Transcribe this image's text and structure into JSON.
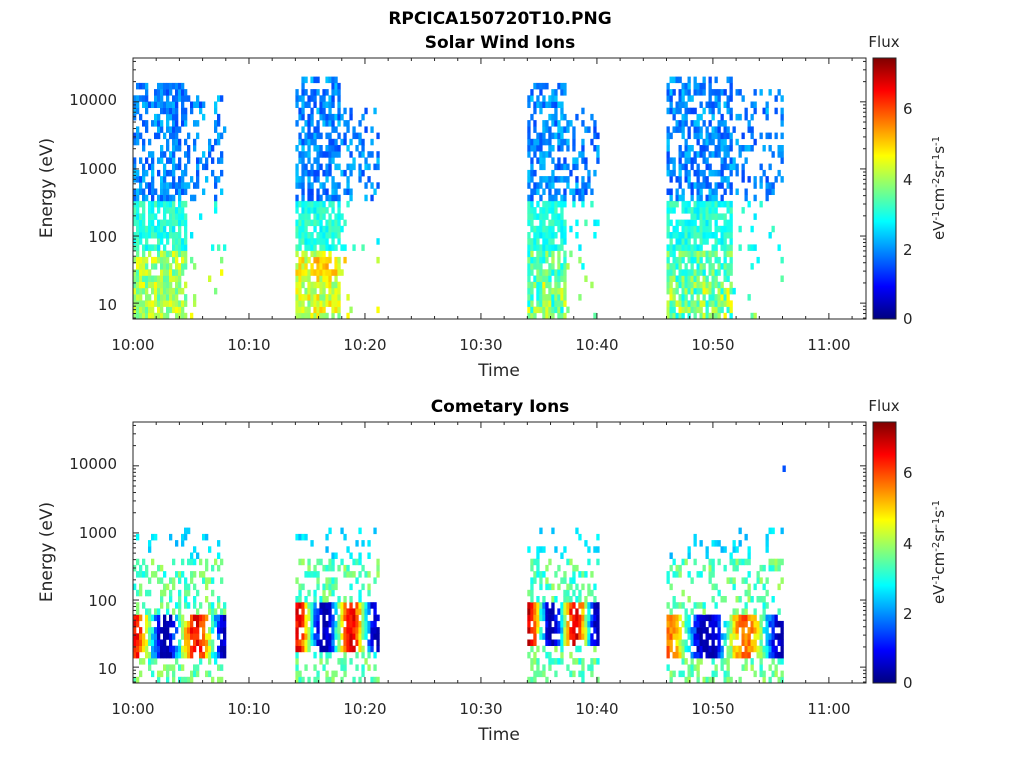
{
  "figure_title": "RPCICA150720T10.PNG",
  "colors": {
    "jet": [
      "#00007f",
      "#0000ff",
      "#007fff",
      "#00ffff",
      "#7fff7f",
      "#ffff00",
      "#ff7f00",
      "#ff0000",
      "#7f0000"
    ]
  },
  "chart_data": [
    {
      "type": "heatmap",
      "title": "Solar Wind Ions",
      "xlabel": "Time",
      "ylabel": "Energy (eV)",
      "x_ticks": [
        "10:00",
        "10:10",
        "10:20",
        "10:30",
        "10:40",
        "10:50",
        "11:00"
      ],
      "y_scale": "log",
      "y_ticks": [
        "10",
        "100",
        "1000",
        "10000"
      ],
      "colorbar": {
        "label": "Flux",
        "unit": "eV-1cm-2sr-1s-1",
        "range": [
          0,
          7.4
        ],
        "ticks": [
          "0",
          "2",
          "4",
          "6"
        ]
      },
      "grid": false,
      "bursts": [
        {
          "start": "10:00",
          "end": "10:08",
          "core_max_eV": 20000,
          "cloud_max_eV": 12000,
          "low_flux": 4.0,
          "mid_flux": 2.0
        },
        {
          "start": "10:14",
          "end": "10:21",
          "core_max_eV": 25000,
          "cloud_max_eV": 9000,
          "low_flux": 4.5,
          "mid_flux": 2.0
        },
        {
          "start": "10:34",
          "end": "10:40",
          "core_max_eV": 20000,
          "cloud_max_eV": 8000,
          "low_flux": 3.5,
          "mid_flux": 2.0
        },
        {
          "start": "10:46",
          "end": "10:56",
          "core_max_eV": 25000,
          "cloud_max_eV": 15000,
          "low_flux": 3.5,
          "mid_flux": 2.0
        }
      ]
    },
    {
      "type": "heatmap",
      "title": "Cometary Ions",
      "xlabel": "Time",
      "ylabel": "Energy (eV)",
      "x_ticks": [
        "10:00",
        "10:10",
        "10:20",
        "10:30",
        "10:40",
        "10:50",
        "11:00"
      ],
      "y_scale": "log",
      "y_ticks": [
        "10",
        "100",
        "1000",
        "10000"
      ],
      "colorbar": {
        "label": "Flux",
        "unit": "eV-1cm-2sr-1s-1",
        "range": [
          0,
          7.4
        ],
        "ticks": [
          "0",
          "2",
          "4",
          "6"
        ]
      },
      "grid": false,
      "bursts": [
        {
          "start": "10:00",
          "end": "10:08",
          "peak_eV": 30,
          "peak_flux": 7.0,
          "cloud_max_eV": 1200
        },
        {
          "start": "10:14",
          "end": "10:21",
          "peak_eV": 40,
          "peak_flux": 7.0,
          "cloud_max_eV": 1200
        },
        {
          "start": "10:34",
          "end": "10:40",
          "peak_eV": 45,
          "peak_flux": 7.2,
          "cloud_max_eV": 1200
        },
        {
          "start": "10:46",
          "end": "10:56",
          "peak_eV": 30,
          "peak_flux": 6.2,
          "cloud_max_eV": 1100
        }
      ]
    }
  ]
}
